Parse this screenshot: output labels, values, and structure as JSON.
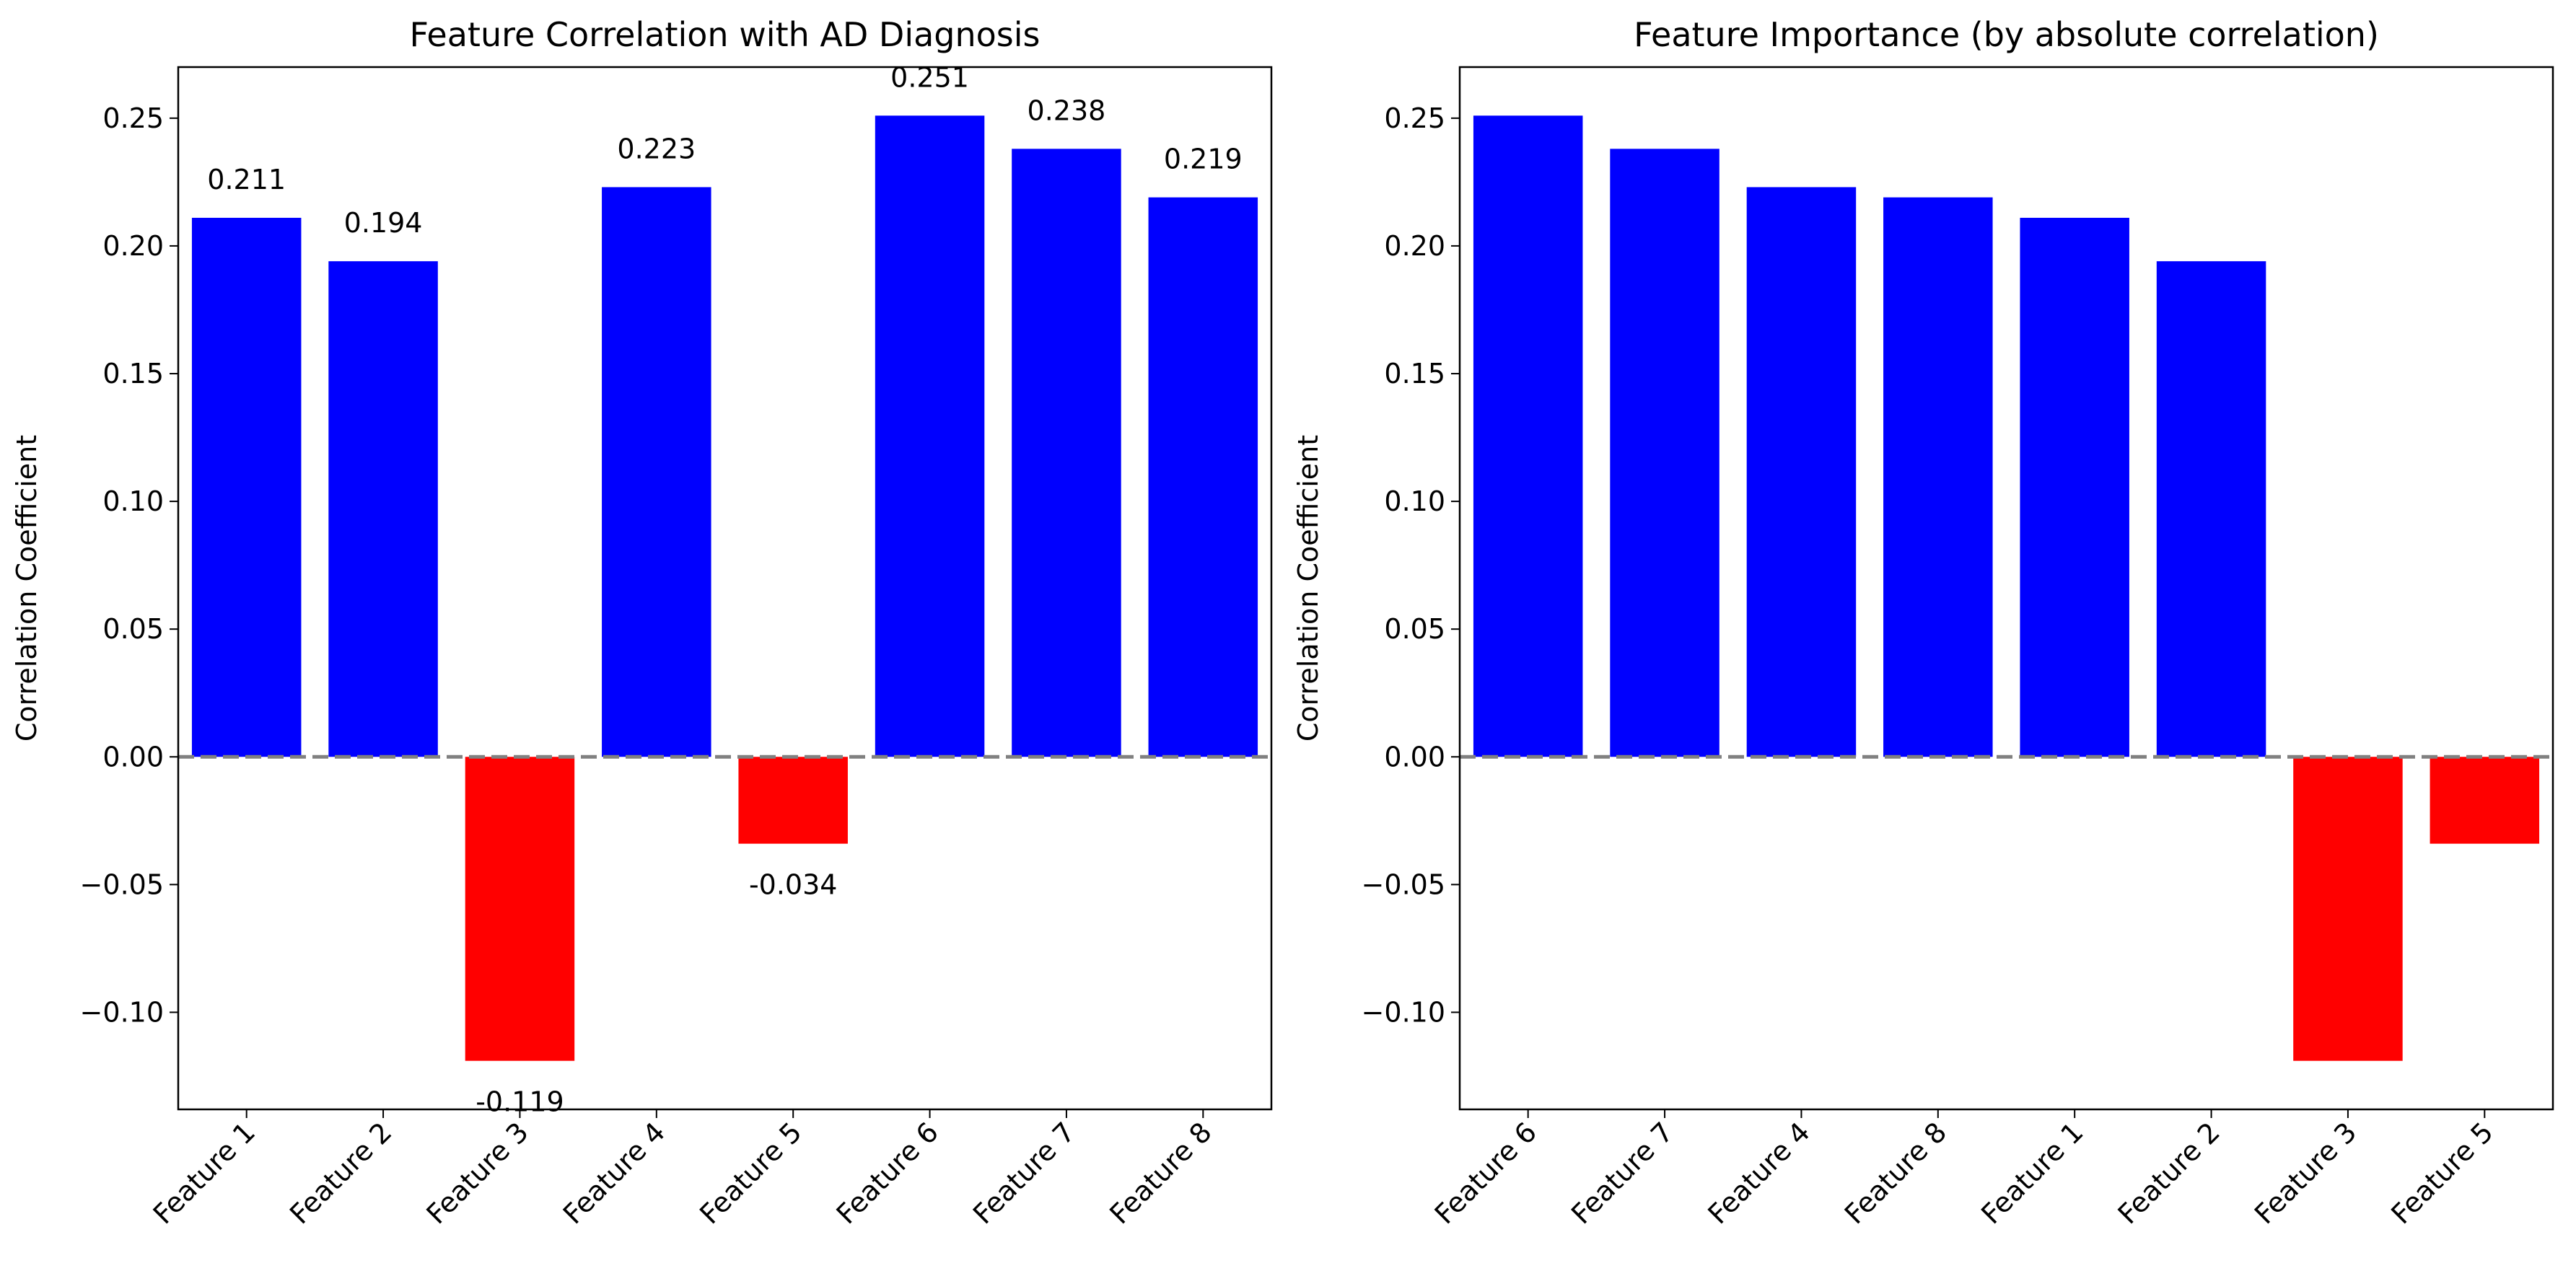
{
  "chart_data": [
    {
      "type": "bar",
      "title": "Feature Correlation with AD Diagnosis",
      "xlabel": "",
      "ylabel": "Correlation Coefficient",
      "categories": [
        "Feature 1",
        "Feature 2",
        "Feature 3",
        "Feature 4",
        "Feature 5",
        "Feature 6",
        "Feature 7",
        "Feature 8"
      ],
      "values": [
        0.211,
        0.194,
        -0.119,
        0.223,
        -0.034,
        0.251,
        0.238,
        0.219
      ],
      "data_labels": [
        "0.211",
        "0.194",
        "-0.119",
        "0.223",
        "-0.034",
        "0.251",
        "0.238",
        "0.219"
      ],
      "ylim": [
        -0.138,
        0.27
      ],
      "yticks": [
        -0.1,
        -0.05,
        0.0,
        0.05,
        0.1,
        0.15,
        0.2,
        0.25
      ],
      "ytick_labels": [
        "−0.10",
        "−0.05",
        "0.00",
        "0.05",
        "0.10",
        "0.15",
        "0.20",
        "0.25"
      ],
      "reference_line": {
        "y": 0,
        "style": "dashed",
        "color": "#808080"
      },
      "colors": {
        "positive": "#0000ff",
        "negative": "#ff0000"
      },
      "grid": false,
      "legend": "none"
    },
    {
      "type": "bar",
      "title": "Feature Importance (by absolute correlation)",
      "xlabel": "",
      "ylabel": "Correlation Coefficient",
      "categories": [
        "Feature 6",
        "Feature 7",
        "Feature 4",
        "Feature 8",
        "Feature 1",
        "Feature 2",
        "Feature 3",
        "Feature 5"
      ],
      "values": [
        0.251,
        0.238,
        0.223,
        0.219,
        0.211,
        0.194,
        -0.119,
        -0.034
      ],
      "ylim": [
        -0.138,
        0.27
      ],
      "yticks": [
        -0.1,
        -0.05,
        0.0,
        0.05,
        0.1,
        0.15,
        0.2,
        0.25
      ],
      "ytick_labels": [
        "−0.10",
        "−0.05",
        "0.00",
        "0.05",
        "0.10",
        "0.15",
        "0.20",
        "0.25"
      ],
      "reference_line": {
        "y": 0,
        "style": "dashed",
        "color": "#808080"
      },
      "colors": {
        "positive": "#0000ff",
        "negative": "#ff0000"
      },
      "grid": false,
      "legend": "none"
    }
  ]
}
